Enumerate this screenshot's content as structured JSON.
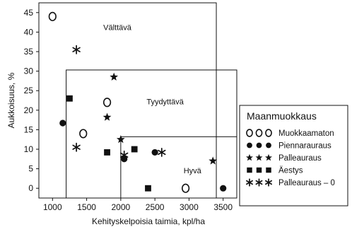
{
  "chart_data": {
    "type": "scatter",
    "xlabel": "Kehityskelpoisia taimia, kpl/ha",
    "ylabel": "Aukkoisuus, %",
    "xlim": [
      800,
      3700
    ],
    "ylim": [
      -2.5,
      47.5
    ],
    "xticks": [
      1000,
      1500,
      2000,
      2500,
      3000,
      3500
    ],
    "yticks": [
      0,
      5,
      10,
      15,
      20,
      25,
      30,
      35,
      40,
      45
    ],
    "grid": false,
    "zones": [
      {
        "label": "Välttävä",
        "x_min": 800,
        "x_max": 3400,
        "y_min": -2.5,
        "y_max": 47.5,
        "label_at": [
          1950,
          40.5
        ]
      },
      {
        "label": "Tyydyttävä",
        "x_min": 1200,
        "x_max": 3700,
        "y_min": -2.5,
        "y_max": 30.3,
        "label_at": [
          2650,
          21.5
        ]
      },
      {
        "label": "Hyvä",
        "x_min": 2000,
        "x_max": 3700,
        "y_min": -2.5,
        "y_max": 13.2,
        "label_at": [
          3050,
          3.8
        ]
      }
    ],
    "legend": {
      "title": "Maanmuokkaus",
      "placement": "right"
    },
    "series": [
      {
        "name": "Muokkaamaton",
        "marker": "open-circle",
        "legend_glyph": "O O O",
        "points": [
          [
            1000,
            44
          ],
          [
            1800,
            22
          ],
          [
            1450,
            14
          ],
          [
            2950,
            0
          ]
        ]
      },
      {
        "name": "Piennarauraus",
        "marker": "filled-circle",
        "legend_glyph": "● ● ●",
        "points": [
          [
            1150,
            16.7
          ],
          [
            2050,
            7.5
          ],
          [
            2500,
            9.2
          ],
          [
            3500,
            0
          ]
        ]
      },
      {
        "name": "Palleauraus",
        "marker": "filled-star",
        "legend_glyph": "★ ★ ★",
        "points": [
          [
            1900,
            28.5
          ],
          [
            1800,
            18.2
          ],
          [
            2000,
            12.5
          ],
          [
            3350,
            7
          ]
        ]
      },
      {
        "name": "Äestys",
        "marker": "filled-square",
        "legend_glyph": "■ ■ ■",
        "points": [
          [
            1250,
            23
          ],
          [
            1800,
            9.2
          ],
          [
            2200,
            10
          ],
          [
            2400,
            0
          ]
        ]
      },
      {
        "name": "Palleauraus – 0",
        "marker": "asterisk",
        "legend_glyph": "✱ ✱ ✱",
        "points": [
          [
            1350,
            35.5
          ],
          [
            1350,
            10.5
          ],
          [
            2050,
            8.5
          ],
          [
            2600,
            9.2
          ]
        ]
      }
    ]
  }
}
